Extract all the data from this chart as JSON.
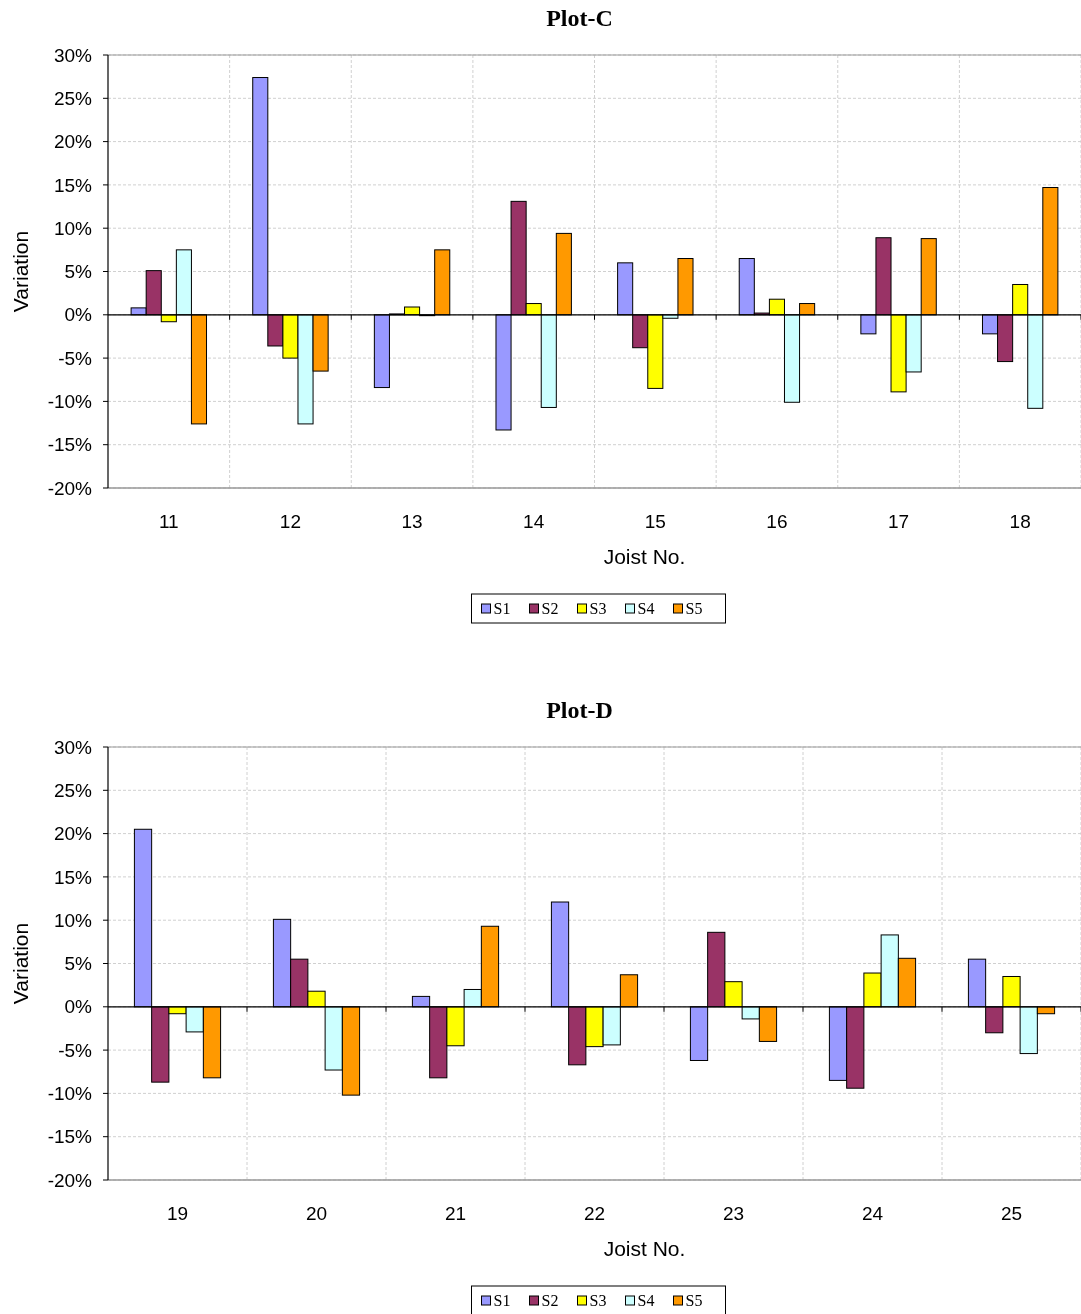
{
  "chart_data": [
    {
      "type": "bar",
      "title": "Plot-C",
      "xlabel": "Joist No.",
      "ylabel": "Variation",
      "categories": [
        "11",
        "12",
        "13",
        "14",
        "15",
        "16",
        "17",
        "18"
      ],
      "ylim": [
        -20,
        30
      ],
      "yticks": [
        {
          "value": -20,
          "label": "-20%"
        },
        {
          "value": -15,
          "label": "-15%"
        },
        {
          "value": -10,
          "label": "-10%"
        },
        {
          "value": -5,
          "label": "-5%"
        },
        {
          "value": 0,
          "label": "0%"
        },
        {
          "value": 5,
          "label": "5%"
        },
        {
          "value": 10,
          "label": "10%"
        },
        {
          "value": 15,
          "label": "15%"
        },
        {
          "value": 20,
          "label": "20%"
        },
        {
          "value": 25,
          "label": "25%"
        },
        {
          "value": 30,
          "label": "30%"
        }
      ],
      "grid": true,
      "legend": "bottom",
      "series": [
        {
          "name": "S1",
          "color": "#9999ff",
          "values": [
            0.8,
            27.4,
            -8.4,
            -13.3,
            6.0,
            6.5,
            -2.2,
            -2.2
          ]
        },
        {
          "name": "S2",
          "color": "#993366",
          "values": [
            5.1,
            -3.6,
            0.1,
            13.1,
            -3.8,
            0.2,
            8.9,
            -5.4
          ]
        },
        {
          "name": "S3",
          "color": "#ffff00",
          "values": [
            -0.8,
            -5.0,
            0.9,
            1.3,
            -8.5,
            1.8,
            -8.9,
            3.5
          ]
        },
        {
          "name": "S4",
          "color": "#ccffff",
          "values": [
            7.5,
            -12.6,
            -0.1,
            -10.7,
            -0.4,
            -10.1,
            -6.6,
            -10.8
          ]
        },
        {
          "name": "S5",
          "color": "#ff9900",
          "values": [
            -12.6,
            -6.5,
            7.5,
            9.4,
            6.5,
            1.3,
            8.8,
            14.7
          ]
        }
      ]
    },
    {
      "type": "bar",
      "title": "Plot-D",
      "xlabel": "Joist No.",
      "ylabel": "Variation",
      "categories": [
        "19",
        "20",
        "21",
        "22",
        "23",
        "24",
        "25"
      ],
      "ylim": [
        -20,
        30
      ],
      "yticks": [
        {
          "value": -20,
          "label": "-20%"
        },
        {
          "value": -15,
          "label": "-15%"
        },
        {
          "value": -10,
          "label": "-10%"
        },
        {
          "value": -5,
          "label": "-5%"
        },
        {
          "value": 0,
          "label": "0%"
        },
        {
          "value": 5,
          "label": "5%"
        },
        {
          "value": 10,
          "label": "10%"
        },
        {
          "value": 15,
          "label": "15%"
        },
        {
          "value": 20,
          "label": "20%"
        },
        {
          "value": 25,
          "label": "25%"
        },
        {
          "value": 30,
          "label": "30%"
        }
      ],
      "grid": true,
      "legend": "bottom",
      "series": [
        {
          "name": "S1",
          "color": "#9999ff",
          "values": [
            20.5,
            10.1,
            1.2,
            12.1,
            -6.2,
            -8.5,
            5.5
          ]
        },
        {
          "name": "S2",
          "color": "#993366",
          "values": [
            -8.7,
            5.5,
            -8.2,
            -6.7,
            8.6,
            -9.4,
            -3.0
          ]
        },
        {
          "name": "S3",
          "color": "#ffff00",
          "values": [
            -0.8,
            1.8,
            -4.5,
            -4.6,
            2.9,
            3.9,
            3.5
          ]
        },
        {
          "name": "S4",
          "color": "#ccffff",
          "values": [
            -2.9,
            -7.3,
            2.0,
            -4.4,
            -1.4,
            8.3,
            -5.4
          ]
        },
        {
          "name": "S5",
          "color": "#ff9900",
          "values": [
            -8.2,
            -10.2,
            9.3,
            3.7,
            -4.0,
            5.6,
            -0.8
          ]
        }
      ]
    }
  ]
}
